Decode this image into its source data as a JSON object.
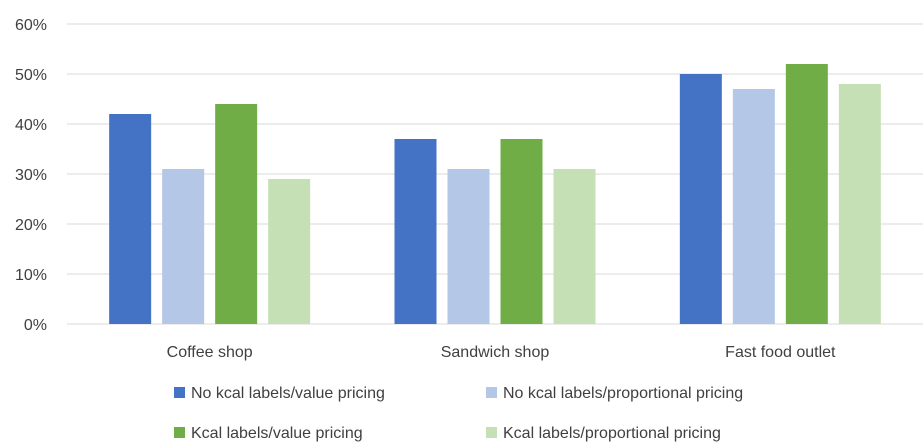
{
  "chart_data": {
    "type": "bar",
    "categories": [
      "Coffee shop",
      "Sandwich shop",
      "Fast food outlet"
    ],
    "series": [
      {
        "name": "No kcal labels/value pricing",
        "values": [
          42,
          37,
          50
        ],
        "color": "#4472C4"
      },
      {
        "name": "No kcal labels/proportional pricing",
        "values": [
          31,
          31,
          47
        ],
        "color": "#B4C7E7"
      },
      {
        "name": "Kcal labels/value pricing",
        "values": [
          44,
          37,
          52
        ],
        "color": "#70AD47"
      },
      {
        "name": "Kcal labels/proportional pricing",
        "values": [
          29,
          31,
          48
        ],
        "color": "#C5E0B4"
      }
    ],
    "ylim": [
      0,
      60
    ],
    "yticks": [
      "0%",
      "10%",
      "20%",
      "30%",
      "40%",
      "50%",
      "60%"
    ],
    "grid": true,
    "legend_position": "bottom",
    "title": "",
    "xlabel": "",
    "ylabel": ""
  },
  "colors": {
    "gridline": "#D9D9D9",
    "axis_text": "#404040"
  }
}
